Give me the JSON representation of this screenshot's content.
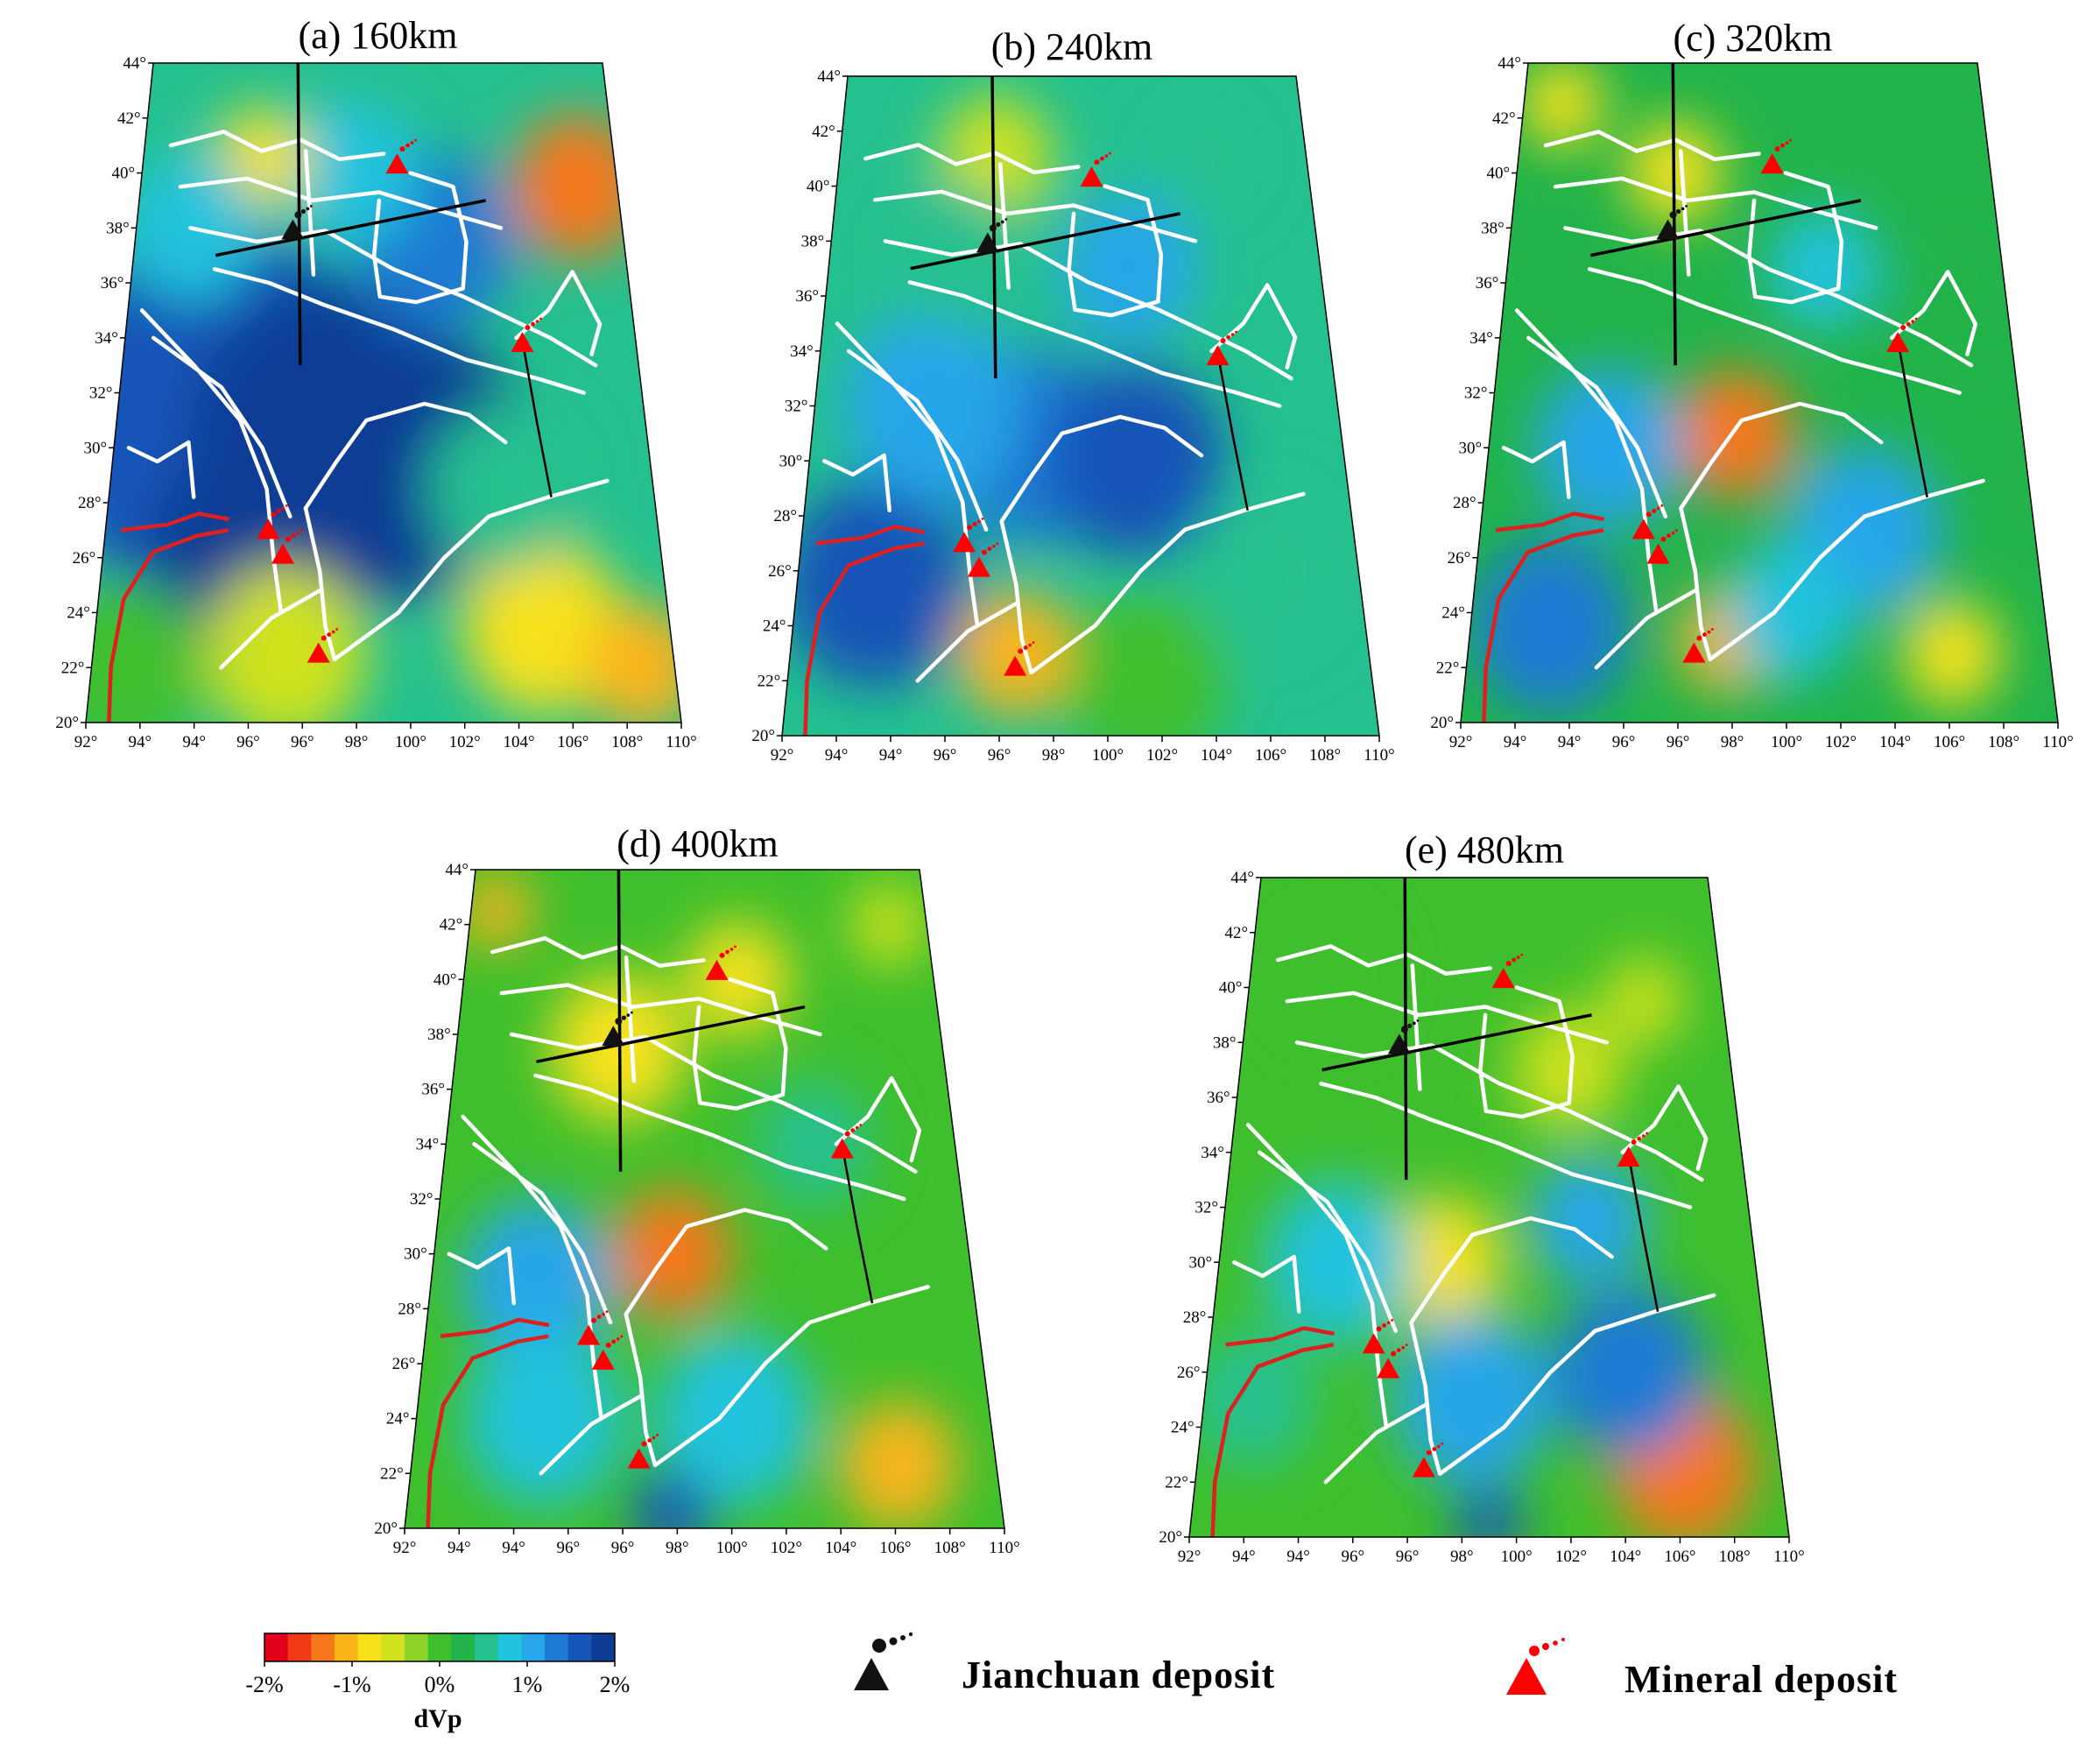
{
  "panels": [
    {
      "id": "a",
      "title": "(a) 160km",
      "depth_km": 160,
      "dominant": "fast"
    },
    {
      "id": "b",
      "title": "(b) 240km",
      "depth_km": 240,
      "dominant": "fast"
    },
    {
      "id": "c",
      "title": "(c) 320km",
      "depth_km": 320,
      "dominant": "mixed"
    },
    {
      "id": "d",
      "title": "(d) 400km",
      "depth_km": 400,
      "dominant": "neutral"
    },
    {
      "id": "e",
      "title": "(e) 480km",
      "depth_km": 480,
      "dominant": "neutral"
    }
  ],
  "axes": {
    "lon_min": 92,
    "lon_max": 110,
    "lat_min": 20,
    "lat_max": 44,
    "lon_labels": [
      "92°",
      "94°",
      "94°",
      "96°",
      "96°",
      "98°",
      "100°",
      "102°",
      "104°",
      "106°",
      "108°",
      "110°"
    ],
    "lat_labels": [
      "20°",
      "22°",
      "24°",
      "26°",
      "28°",
      "30°",
      "32°",
      "34°",
      "36°",
      "38°",
      "40°",
      "42°",
      "44°"
    ]
  },
  "colorbar": {
    "title": "dVp",
    "tick_labels": [
      "-2%",
      "-1%",
      "0%",
      "1%",
      "2%"
    ],
    "min": -2,
    "max": 2,
    "colors": [
      "#e3001b",
      "#f03a16",
      "#f7781a",
      "#fbb51a",
      "#f7e21a",
      "#cfe21d",
      "#8fd22a",
      "#3fbf2d",
      "#22b34a",
      "#25c08f",
      "#21c3dd",
      "#27a6e9",
      "#1d7ad2",
      "#1555b7",
      "#0e3c94"
    ]
  },
  "legend": {
    "jianchuan_label": "Jianchuan deposit",
    "mineral_label": "Mineral deposit",
    "jianchuan_color": "#111111",
    "mineral_color": "#ff0000"
  },
  "colors": {
    "fault_lines": "#ffffff",
    "profile_lines": "#000000",
    "red_boundary": "#dd2020"
  }
}
